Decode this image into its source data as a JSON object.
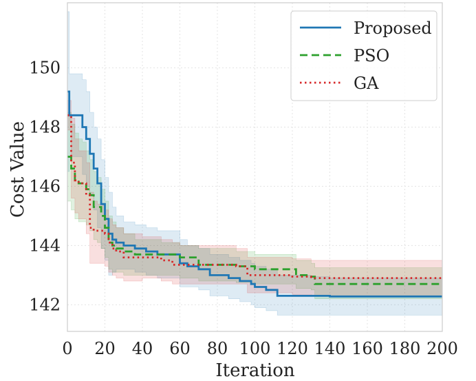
{
  "chart_data": {
    "type": "line",
    "title": "",
    "xlabel": "Iteration",
    "ylabel": "Cost Value",
    "xlim": [
      0,
      200
    ],
    "ylim": [
      141.1,
      152.2
    ],
    "xticks": [
      0,
      20,
      40,
      60,
      80,
      100,
      120,
      140,
      160,
      180,
      200
    ],
    "yticks": [
      142,
      144,
      146,
      148,
      150
    ],
    "grid": true,
    "legend_position": "top-right",
    "series": [
      {
        "name": "Proposed",
        "color": "#1f77b4",
        "dash": "solid",
        "x": [
          0,
          1,
          7,
          8,
          10,
          12,
          14,
          16,
          18,
          20,
          22,
          24,
          26,
          30,
          36,
          42,
          48,
          56,
          60,
          64,
          70,
          76,
          86,
          92,
          98,
          100,
          106,
          110,
          112,
          120,
          130,
          140,
          150,
          160,
          170,
          180,
          190,
          200
        ],
        "y": [
          149.2,
          148.4,
          148.4,
          148.0,
          147.6,
          147.1,
          146.6,
          146.1,
          145.4,
          144.9,
          144.4,
          144.2,
          144.1,
          144.0,
          143.9,
          143.8,
          143.7,
          143.7,
          143.4,
          143.3,
          143.2,
          143.0,
          142.9,
          142.8,
          142.7,
          142.6,
          142.5,
          142.5,
          142.3,
          142.3,
          142.3,
          142.28,
          142.28,
          142.28,
          142.28,
          142.28,
          142.28,
          142.28
        ],
        "band_upper": [
          151.9,
          149.8,
          149.8,
          149.6,
          149.2,
          148.5,
          148.0,
          147.6,
          146.9,
          146.3,
          145.8,
          145.3,
          145.0,
          144.8,
          144.7,
          144.6,
          144.5,
          144.5,
          144.2,
          144.0,
          143.9,
          143.7,
          143.6,
          143.5,
          143.4,
          143.3,
          143.2,
          143.2,
          143.0,
          143.0,
          142.95,
          142.9,
          142.9,
          142.9,
          142.9,
          142.9,
          142.9,
          142.9
        ],
        "band_lower": [
          146.5,
          147.0,
          147.0,
          146.4,
          146.0,
          145.7,
          145.2,
          144.6,
          143.9,
          143.5,
          143.0,
          143.1,
          143.2,
          143.2,
          143.1,
          143.0,
          142.9,
          142.9,
          142.6,
          142.6,
          142.5,
          142.3,
          142.2,
          142.1,
          142.0,
          141.9,
          141.8,
          141.8,
          141.65,
          141.65,
          141.65,
          141.65,
          141.65,
          141.65,
          141.65,
          141.65,
          141.65,
          141.65
        ]
      },
      {
        "name": "PSO",
        "color": "#2ca02c",
        "dash": "dashed",
        "x": [
          0,
          2,
          4,
          6,
          8,
          10,
          12,
          14,
          16,
          18,
          20,
          22,
          24,
          26,
          30,
          36,
          40,
          50,
          60,
          70,
          80,
          90,
          96,
          100,
          110,
          120,
          122,
          130,
          132,
          140,
          150,
          160,
          170,
          180,
          190,
          200
        ],
        "y": [
          147.0,
          146.6,
          146.2,
          146.1,
          146.1,
          145.9,
          145.7,
          145.3,
          145.3,
          145.0,
          144.6,
          144.1,
          144.0,
          143.9,
          143.8,
          143.7,
          143.7,
          143.7,
          143.6,
          143.35,
          143.35,
          143.3,
          143.3,
          143.2,
          143.2,
          143.2,
          143.0,
          142.95,
          142.7,
          142.7,
          142.7,
          142.7,
          142.7,
          142.7,
          142.7,
          142.7
        ],
        "band_upper": [
          148.5,
          148.1,
          147.8,
          147.6,
          147.5,
          147.2,
          146.9,
          146.5,
          146.3,
          145.9,
          145.5,
          145.0,
          144.8,
          144.6,
          144.4,
          144.2,
          144.2,
          144.1,
          144.0,
          143.9,
          143.9,
          143.8,
          143.8,
          143.7,
          143.7,
          143.7,
          143.5,
          143.4,
          143.25,
          143.25,
          143.25,
          143.25,
          143.25,
          143.25,
          143.25,
          143.25
        ],
        "band_lower": [
          145.5,
          145.2,
          144.9,
          144.8,
          144.8,
          144.7,
          144.5,
          144.2,
          144.1,
          143.9,
          143.6,
          143.2,
          143.1,
          143.1,
          143.0,
          143.0,
          143.0,
          143.0,
          142.9,
          142.8,
          142.8,
          142.75,
          142.75,
          142.7,
          142.7,
          142.7,
          142.55,
          142.5,
          142.2,
          142.2,
          142.2,
          142.2,
          142.2,
          142.2,
          142.2,
          142.2
        ]
      },
      {
        "name": "GA",
        "color": "#d62728",
        "dash": "dotted",
        "x": [
          0,
          2,
          4,
          6,
          10,
          12,
          14,
          16,
          20,
          22,
          24,
          26,
          30,
          40,
          50,
          56,
          60,
          70,
          80,
          90,
          94,
          96,
          100,
          110,
          120,
          130,
          140,
          150,
          160,
          170,
          180,
          190,
          200
        ],
        "y": [
          148.4,
          146.8,
          146.2,
          146.1,
          145.7,
          144.6,
          144.5,
          144.5,
          144.4,
          144.1,
          143.9,
          143.8,
          143.6,
          143.6,
          143.5,
          143.35,
          143.35,
          143.35,
          143.35,
          143.3,
          143.3,
          143.0,
          143.0,
          143.0,
          142.95,
          142.9,
          142.9,
          142.9,
          142.9,
          142.9,
          142.9,
          142.9,
          142.9
        ],
        "band_upper": [
          148.9,
          148.3,
          147.6,
          147.2,
          146.8,
          145.8,
          145.5,
          145.4,
          145.2,
          144.9,
          144.7,
          144.6,
          144.4,
          144.3,
          144.2,
          144.1,
          144.0,
          144.0,
          144.0,
          143.9,
          143.9,
          143.6,
          143.6,
          143.6,
          143.55,
          143.5,
          143.5,
          143.5,
          143.5,
          143.5,
          143.5,
          143.5,
          143.5
        ],
        "band_lower": [
          147.9,
          145.6,
          145.1,
          144.9,
          144.4,
          143.4,
          143.4,
          143.4,
          143.3,
          143.1,
          143.0,
          142.9,
          142.8,
          142.9,
          142.8,
          142.7,
          142.7,
          142.7,
          142.7,
          142.7,
          142.7,
          142.4,
          142.4,
          142.4,
          142.35,
          142.3,
          142.3,
          142.3,
          142.3,
          142.3,
          142.3,
          142.3,
          142.3
        ]
      }
    ]
  }
}
